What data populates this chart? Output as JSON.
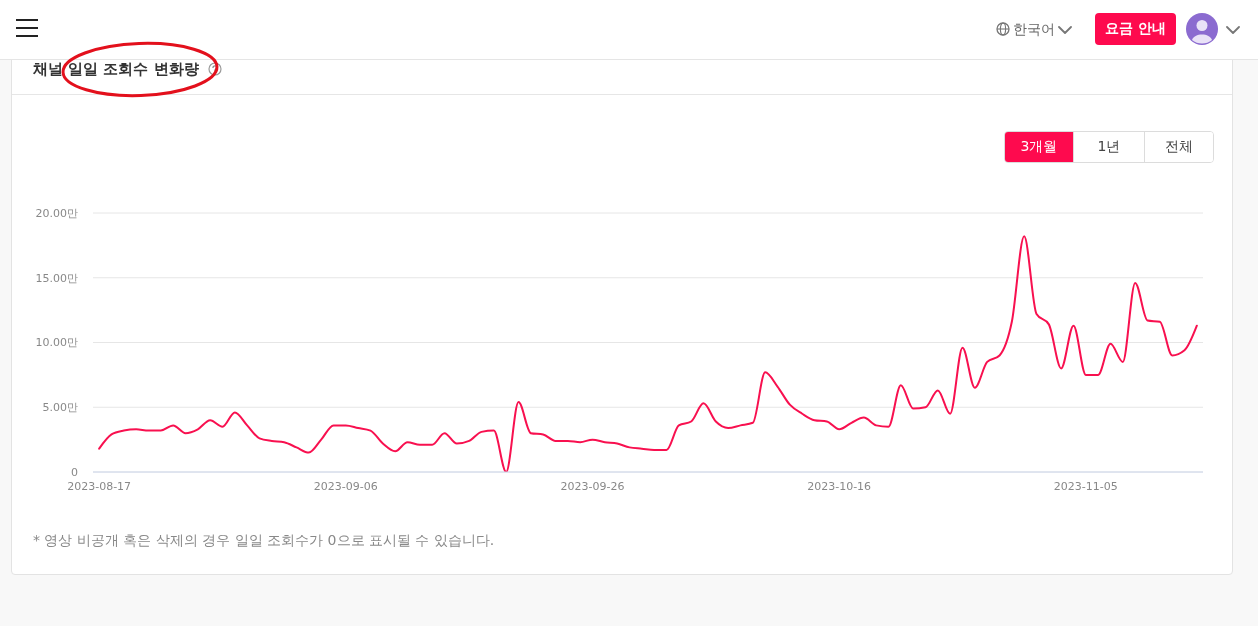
{
  "chart_data": {
    "type": "line",
    "title": "채널 일일 조회수 변화량",
    "x": [
      "2023-08-17",
      "2023-08-18",
      "2023-08-19",
      "2023-08-20",
      "2023-08-21",
      "2023-08-22",
      "2023-08-23",
      "2023-08-24",
      "2023-08-25",
      "2023-08-26",
      "2023-08-27",
      "2023-08-28",
      "2023-08-29",
      "2023-08-30",
      "2023-08-31",
      "2023-09-01",
      "2023-09-02",
      "2023-09-03",
      "2023-09-04",
      "2023-09-05",
      "2023-09-06",
      "2023-09-07",
      "2023-09-08",
      "2023-09-09",
      "2023-09-10",
      "2023-09-11",
      "2023-09-12",
      "2023-09-13",
      "2023-09-14",
      "2023-09-15",
      "2023-09-16",
      "2023-09-17",
      "2023-09-18",
      "2023-09-19",
      "2023-09-20",
      "2023-09-21",
      "2023-09-22",
      "2023-09-23",
      "2023-09-24",
      "2023-09-25",
      "2023-09-26",
      "2023-09-27",
      "2023-09-28",
      "2023-09-29",
      "2023-09-30",
      "2023-10-01",
      "2023-10-02",
      "2023-10-03",
      "2023-10-04",
      "2023-10-05",
      "2023-10-06",
      "2023-10-07",
      "2023-10-08",
      "2023-10-09",
      "2023-10-10",
      "2023-10-11",
      "2023-10-12",
      "2023-10-13",
      "2023-10-14",
      "2023-10-15",
      "2023-10-16",
      "2023-10-17",
      "2023-10-18",
      "2023-10-19",
      "2023-10-20",
      "2023-10-21",
      "2023-10-22",
      "2023-10-23",
      "2023-10-24",
      "2023-10-25",
      "2023-10-26",
      "2023-10-27",
      "2023-10-28",
      "2023-10-29",
      "2023-10-30",
      "2023-10-31",
      "2023-11-01",
      "2023-11-02",
      "2023-11-03",
      "2023-11-04",
      "2023-11-05",
      "2023-11-06",
      "2023-11-07",
      "2023-11-08",
      "2023-11-09",
      "2023-11-10",
      "2023-11-11",
      "2023-11-12",
      "2023-11-13",
      "2023-11-14"
    ],
    "values": [
      1.8,
      2.9,
      3.2,
      3.3,
      3.2,
      3.2,
      3.6,
      3.0,
      3.3,
      4.0,
      3.5,
      4.6,
      3.6,
      2.6,
      2.4,
      2.3,
      1.9,
      1.5,
      2.5,
      3.6,
      3.6,
      3.4,
      3.2,
      2.2,
      1.6,
      2.3,
      2.1,
      2.1,
      3.0,
      2.2,
      2.4,
      3.1,
      3.2,
      0,
      5.4,
      3.0,
      2.9,
      2.4,
      2.4,
      2.3,
      2.5,
      2.3,
      2.2,
      1.9,
      1.8,
      1.7,
      1.7,
      3.6,
      3.9,
      5.3,
      3.9,
      3.4,
      3.6,
      3.8,
      7.7,
      6.6,
      5.2,
      4.5,
      4.0,
      3.9,
      3.3,
      3.8,
      4.2,
      3.6,
      3.5,
      6.7,
      4.9,
      5.0,
      6.3,
      4.5,
      9.6,
      6.5,
      8.5,
      9.0,
      11.6,
      18.2,
      12.2,
      11.4,
      8.0,
      11.3,
      7.5,
      7.5,
      9.9,
      8.5,
      14.6,
      11.7,
      11.6,
      9.0,
      9.4,
      11.3
    ],
    "color": "#f8104f",
    "xlim": [
      "2023-08-16T12:00",
      "2023-11-14T12:00"
    ],
    "xticks": [
      "2023-08-17",
      "2023-09-06",
      "2023-09-26",
      "2023-10-16",
      "2023-11-05"
    ],
    "ylim": [
      0,
      20
    ],
    "yticks": [
      0,
      {
        "value": 5,
        "label": "5.00만"
      },
      {
        "value": 10,
        "label": "10.00만"
      },
      {
        "value": 15,
        "label": "15.00만"
      },
      {
        "value": 20,
        "label": "20.00만"
      }
    ],
    "grid": "y",
    "marker": "none",
    "line_style": "solid",
    "annotations": [
      "* 영상 비공개 혹은 삭제의 경우 일일 조회수가 0으로 표시될 수 있습니다.",
      "3개월",
      "1년",
      "전체",
      "한국어",
      "요금 안내"
    ]
  }
}
